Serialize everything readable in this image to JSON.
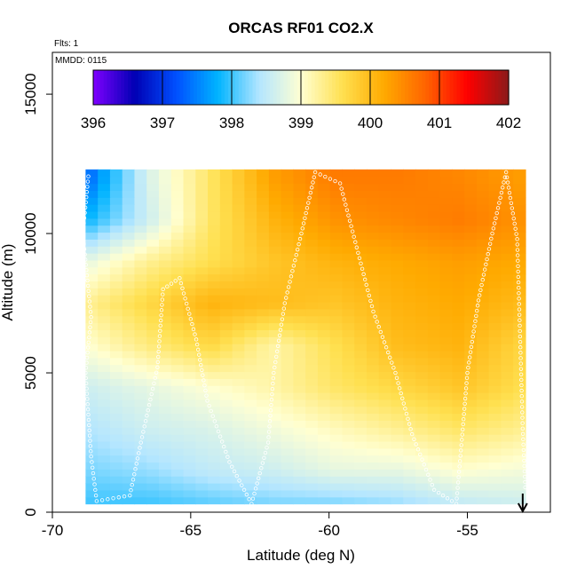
{
  "chart_data": {
    "type": "heatmap",
    "title": "ORCAS RF01 CO2.X",
    "annotations": [
      "Flts: 1",
      "MMDD: 0115"
    ],
    "xlabel": "Latitude (deg N)",
    "ylabel": "Altitude (m)",
    "xlim": [
      -70,
      -52
    ],
    "ylim": [
      0,
      16500
    ],
    "x_ticks": [
      -70,
      -65,
      -60,
      -55
    ],
    "y_ticks": [
      0,
      5000,
      10000,
      15000
    ],
    "colorbar": {
      "min": 396,
      "max": 402,
      "ticks": [
        396,
        397,
        398,
        399,
        400,
        401,
        402
      ],
      "colors": [
        "#7f00ff",
        "#0000b4",
        "#0050ff",
        "#00b4ff",
        "#b4e6ff",
        "#ffffd2",
        "#ffe050",
        "#ffaa00",
        "#ff6400",
        "#ff0000",
        "#8b1a1a"
      ]
    },
    "field_extent": {
      "lat_min": -68.8,
      "lat_max": -52.9,
      "alt_min": 300,
      "alt_max": 12300
    },
    "estimated_levels": [
      {
        "alt": 12000,
        "values": [
          397.3,
          398.7,
          399.5,
          400.3,
          400.6,
          400.6,
          400.5,
          400.3
        ]
      },
      {
        "alt": 10500,
        "values": [
          397.8,
          398.6,
          399.5,
          400.1,
          400.4,
          400.5,
          400.6,
          400.4
        ]
      },
      {
        "alt": 9000,
        "values": [
          398.8,
          399.3,
          399.6,
          399.9,
          400.1,
          400.2,
          400.3,
          400.2
        ]
      },
      {
        "alt": 7500,
        "values": [
          399.3,
          399.7,
          400.1,
          400.0,
          399.9,
          400.1,
          400.2,
          400.0
        ]
      },
      {
        "alt": 6000,
        "values": [
          399.0,
          399.4,
          399.7,
          399.2,
          399.6,
          400.0,
          400.1,
          399.7
        ]
      },
      {
        "alt": 4500,
        "values": [
          398.6,
          398.8,
          399.0,
          399.2,
          399.5,
          399.7,
          399.9,
          399.6
        ]
      },
      {
        "alt": 3000,
        "values": [
          398.4,
          398.6,
          398.7,
          398.9,
          399.1,
          399.3,
          399.5,
          399.3
        ]
      },
      {
        "alt": 1500,
        "values": [
          398.2,
          398.3,
          398.5,
          398.6,
          398.8,
          398.8,
          399.0,
          398.9
        ]
      },
      {
        "alt": 300,
        "values": [
          398.0,
          398.0,
          398.1,
          398.2,
          398.2,
          398.3,
          398.5,
          398.6
        ]
      }
    ],
    "level_latitudes": [
      -68.8,
      -66.5,
      -64.3,
      -62,
      -59.8,
      -57.5,
      -55.3,
      -52.9
    ],
    "flight_track": [
      [
        -68.7,
        12050
      ],
      [
        -68.9,
        10000
      ],
      [
        -68.6,
        7000
      ],
      [
        -68.8,
        5000
      ],
      [
        -68.6,
        2000
      ],
      [
        -68.4,
        400
      ],
      [
        -67.2,
        600
      ],
      [
        -66.8,
        2500
      ],
      [
        -66.2,
        5200
      ],
      [
        -66.0,
        8000
      ],
      [
        -65.4,
        8400
      ],
      [
        -64.8,
        6200
      ],
      [
        -64.4,
        4000
      ],
      [
        -63.6,
        1800
      ],
      [
        -62.8,
        300
      ],
      [
        -62.2,
        2500
      ],
      [
        -62.0,
        5000
      ],
      [
        -61.6,
        7500
      ],
      [
        -61.0,
        10000
      ],
      [
        -60.5,
        12200
      ],
      [
        -59.6,
        11800
      ],
      [
        -59.0,
        9500
      ],
      [
        -58.4,
        7200
      ],
      [
        -57.6,
        5000
      ],
      [
        -57.0,
        2800
      ],
      [
        -56.2,
        800
      ],
      [
        -55.4,
        300
      ],
      [
        -55.2,
        2600
      ],
      [
        -55.0,
        5000
      ],
      [
        -54.6,
        7600
      ],
      [
        -54.1,
        10000
      ],
      [
        -53.6,
        12200
      ],
      [
        -53.2,
        9800
      ],
      [
        -53.1,
        6500
      ],
      [
        -53.0,
        3000
      ],
      [
        -52.9,
        700
      ]
    ],
    "arrow_at_lat": -53.0
  }
}
